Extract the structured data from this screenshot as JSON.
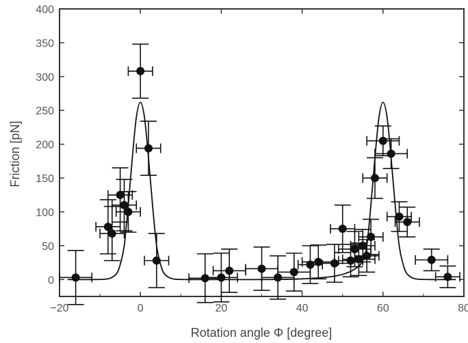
{
  "chart_data": {
    "type": "scatter",
    "xlabel": "Rotation angle Φ [degree]",
    "ylabel": "Friction [pN]",
    "xlim": [
      -20,
      80
    ],
    "ylim": [
      -25,
      400
    ],
    "x_ticks": [
      -20,
      0,
      20,
      40,
      60,
      80
    ],
    "x_tick_labels": [
      "−20",
      "0",
      "20",
      "40",
      "60",
      "80"
    ],
    "y_ticks": [
      0,
      50,
      100,
      150,
      200,
      250,
      300,
      350,
      400
    ],
    "y_tick_labels": [
      "0",
      "50",
      "100",
      "150",
      "200",
      "250",
      "300",
      "350",
      "400"
    ],
    "grid": false,
    "colors": {
      "ink": "#111111",
      "frame": "#333333",
      "text": "#555555"
    },
    "series": [
      {
        "kind": "measured-points-with-error-bars",
        "points": [
          {
            "x": -16,
            "y": 3,
            "xerr": 4,
            "yerr": 40
          },
          {
            "x": -8,
            "y": 78,
            "xerr": 3,
            "yerr": 40
          },
          {
            "x": -7,
            "y": 68,
            "xerr": 3,
            "yerr": 40
          },
          {
            "x": -5,
            "y": 125,
            "xerr": 3,
            "yerr": 40
          },
          {
            "x": -4,
            "y": 110,
            "xerr": 3,
            "yerr": 38
          },
          {
            "x": -3,
            "y": 100,
            "xerr": 3,
            "yerr": 30
          },
          {
            "x": 0,
            "y": 308,
            "xerr": 3,
            "yerr": 40
          },
          {
            "x": 2,
            "y": 194,
            "xerr": 3,
            "yerr": 40
          },
          {
            "x": 4,
            "y": 28,
            "xerr": 3,
            "yerr": 40
          },
          {
            "x": 16,
            "y": 2,
            "xerr": 4,
            "yerr": 36
          },
          {
            "x": 20,
            "y": 3,
            "xerr": 4,
            "yerr": 36
          },
          {
            "x": 22,
            "y": 13,
            "xerr": 4,
            "yerr": 32
          },
          {
            "x": 30,
            "y": 16,
            "xerr": 4,
            "yerr": 32
          },
          {
            "x": 34,
            "y": 3,
            "xerr": 4,
            "yerr": 32
          },
          {
            "x": 38,
            "y": 11,
            "xerr": 4,
            "yerr": 28
          },
          {
            "x": 42,
            "y": 22,
            "xerr": 3,
            "yerr": 28
          },
          {
            "x": 44,
            "y": 26,
            "xerr": 4,
            "yerr": 25
          },
          {
            "x": 48,
            "y": 24,
            "xerr": 4,
            "yerr": 28
          },
          {
            "x": 50,
            "y": 75,
            "xerr": 3,
            "yerr": 35
          },
          {
            "x": 52,
            "y": 28,
            "xerr": 3,
            "yerr": 24
          },
          {
            "x": 53,
            "y": 45,
            "xerr": 4,
            "yerr": 26
          },
          {
            "x": 54,
            "y": 30,
            "xerr": 4,
            "yerr": 24
          },
          {
            "x": 55,
            "y": 50,
            "xerr": 3,
            "yerr": 24
          },
          {
            "x": 56,
            "y": 35,
            "xerr": 3,
            "yerr": 24
          },
          {
            "x": 57,
            "y": 63,
            "xerr": 3,
            "yerr": 26
          },
          {
            "x": 58,
            "y": 150,
            "xerr": 3,
            "yerr": 30
          },
          {
            "x": 60,
            "y": 205,
            "xerr": 4,
            "yerr": 22
          },
          {
            "x": 62,
            "y": 186,
            "xerr": 4,
            "yerr": 22
          },
          {
            "x": 64,
            "y": 93,
            "xerr": 3,
            "yerr": 22
          },
          {
            "x": 66,
            "y": 85,
            "xerr": 3,
            "yerr": 22
          },
          {
            "x": 72,
            "y": 29,
            "xerr": 4,
            "yerr": 16
          },
          {
            "x": 76,
            "y": 4,
            "xerr": 3,
            "yerr": 16
          }
        ]
      },
      {
        "kind": "model-curve",
        "x": [
          -18,
          -12,
          -8,
          -6,
          -5,
          -4,
          -3,
          -2,
          -1,
          0,
          1,
          2,
          3,
          4,
          5,
          6,
          8,
          12,
          20,
          30,
          40,
          48,
          52,
          54,
          55,
          56,
          57,
          58,
          59,
          60,
          61,
          62,
          63,
          64,
          65,
          66,
          68,
          72,
          78
        ],
        "y": [
          0,
          0,
          1,
          8,
          22,
          50,
          110,
          180,
          240,
          262,
          240,
          180,
          110,
          50,
          22,
          8,
          1,
          0,
          0,
          0,
          1,
          5,
          12,
          20,
          28,
          50,
          110,
          180,
          240,
          262,
          240,
          180,
          110,
          50,
          22,
          8,
          1,
          0,
          0
        ]
      }
    ]
  }
}
